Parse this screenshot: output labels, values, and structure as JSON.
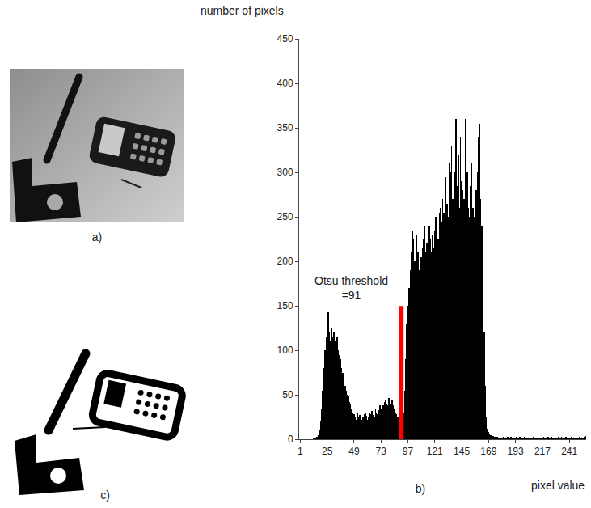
{
  "chart_data": {
    "type": "bar",
    "y_label": "number of pixels",
    "x_label": "pixel value",
    "x": [
      1,
      2,
      3,
      4,
      5,
      6,
      7,
      8,
      9,
      10,
      11,
      12,
      13,
      14,
      15,
      16,
      17,
      18,
      19,
      20,
      21,
      22,
      23,
      24,
      25,
      26,
      27,
      28,
      29,
      30,
      31,
      32,
      33,
      34,
      35,
      36,
      37,
      38,
      39,
      40,
      41,
      42,
      43,
      44,
      45,
      46,
      47,
      48,
      49,
      50,
      51,
      52,
      53,
      54,
      55,
      56,
      57,
      58,
      59,
      60,
      61,
      62,
      63,
      64,
      65,
      66,
      67,
      68,
      69,
      70,
      71,
      72,
      73,
      74,
      75,
      76,
      77,
      78,
      79,
      80,
      81,
      82,
      83,
      84,
      85,
      86,
      87,
      88,
      89,
      90,
      91,
      92,
      93,
      94,
      95,
      96,
      97,
      98,
      99,
      100,
      101,
      102,
      103,
      104,
      105,
      106,
      107,
      108,
      109,
      110,
      111,
      112,
      113,
      114,
      115,
      116,
      117,
      118,
      119,
      120,
      121,
      122,
      123,
      124,
      125,
      126,
      127,
      128,
      129,
      130,
      131,
      132,
      133,
      134,
      135,
      136,
      137,
      138,
      139,
      140,
      141,
      142,
      143,
      144,
      145,
      146,
      147,
      148,
      149,
      150,
      151,
      152,
      153,
      154,
      155,
      156,
      157,
      158,
      159,
      160,
      161,
      162,
      163,
      164,
      165,
      166,
      167,
      168,
      169,
      170,
      171,
      172,
      173,
      174,
      175,
      176,
      177,
      178,
      179,
      180,
      181,
      182,
      183,
      184,
      185,
      186,
      187,
      188,
      189,
      190,
      191,
      192,
      193,
      194,
      195,
      196,
      197,
      198,
      199,
      200,
      201,
      202,
      203,
      204,
      205,
      206,
      207,
      208,
      209,
      210,
      211,
      212,
      213,
      214,
      215,
      216,
      217,
      218,
      219,
      220,
      221,
      222,
      223,
      224,
      225,
      226,
      227,
      228,
      229,
      230,
      231,
      232,
      233,
      234,
      235,
      236,
      237,
      238,
      239,
      240,
      241,
      242,
      243,
      244,
      245,
      246,
      247,
      248,
      249,
      250,
      251,
      252,
      253,
      254,
      255,
      256
    ],
    "values": [
      0,
      0,
      0,
      0,
      0,
      0,
      0,
      0,
      0,
      0,
      0,
      0,
      1,
      1,
      2,
      3,
      5,
      10,
      20,
      35,
      55,
      80,
      100,
      115,
      130,
      143,
      120,
      110,
      125,
      115,
      120,
      110,
      105,
      115,
      100,
      95,
      90,
      80,
      75,
      70,
      60,
      55,
      50,
      48,
      42,
      40,
      35,
      30,
      28,
      25,
      22,
      30,
      25,
      27,
      24,
      22,
      25,
      28,
      30,
      26,
      22,
      25,
      30,
      28,
      32,
      27,
      25,
      35,
      30,
      28,
      33,
      38,
      35,
      40,
      38,
      42,
      45,
      40,
      38,
      46,
      42,
      40,
      44,
      38,
      35,
      30,
      28,
      25,
      22,
      20,
      18,
      20,
      30,
      55,
      90,
      130,
      150,
      170,
      190,
      210,
      235,
      225,
      200,
      215,
      230,
      210,
      190,
      220,
      205,
      215,
      225,
      240,
      210,
      220,
      195,
      240,
      225,
      210,
      230,
      215,
      235,
      250,
      240,
      225,
      255,
      260,
      245,
      270,
      255,
      280,
      295,
      265,
      250,
      310,
      300,
      330,
      270,
      410,
      300,
      360,
      285,
      320,
      260,
      340,
      290,
      280,
      270,
      360,
      265,
      300,
      260,
      250,
      285,
      310,
      260,
      250,
      230,
      280,
      300,
      340,
      355,
      270,
      240,
      180,
      120,
      60,
      25,
      12,
      8,
      6,
      5,
      4,
      4,
      3,
      3,
      3,
      3,
      2,
      3,
      2,
      2,
      3,
      2,
      1,
      2,
      3,
      2,
      2,
      3,
      2,
      2,
      1,
      2,
      3,
      2,
      2,
      3,
      2,
      2,
      2,
      3,
      2,
      1,
      2,
      2,
      3,
      2,
      2,
      3,
      2,
      2,
      2,
      3,
      2,
      2,
      1,
      2,
      3,
      2,
      2,
      2,
      3,
      2,
      2,
      3,
      2,
      2,
      1,
      2,
      2,
      3,
      2,
      2,
      3,
      2,
      2,
      2,
      3,
      2,
      2,
      1,
      2,
      3,
      2,
      2,
      2,
      3,
      2,
      2,
      3,
      2,
      2,
      2,
      3,
      2,
      4
    ],
    "color": "#000000",
    "xlim": [
      0,
      256
    ],
    "ylim": [
      0,
      450
    ],
    "xticks": [
      1,
      25,
      49,
      73,
      97,
      121,
      145,
      169,
      193,
      217,
      241
    ],
    "yticks": [
      0,
      50,
      100,
      150,
      200,
      250,
      300,
      350,
      400,
      450
    ],
    "grid": false,
    "annotations": [
      {
        "text": [
          "Otsu threshold",
          "=91"
        ],
        "x": 91,
        "color": "#ff0000"
      }
    ]
  },
  "panel_labels": {
    "a": "a)",
    "b": "b)",
    "c": "c)"
  }
}
